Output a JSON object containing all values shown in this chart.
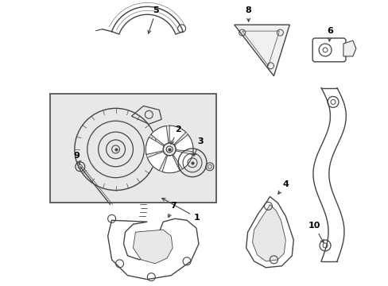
{
  "background_color": "#ffffff",
  "box_bg": "#e8e8e8",
  "line_color": "#444444",
  "label_color": "#000000",
  "figsize": [
    4.89,
    3.6
  ],
  "dpi": 100
}
